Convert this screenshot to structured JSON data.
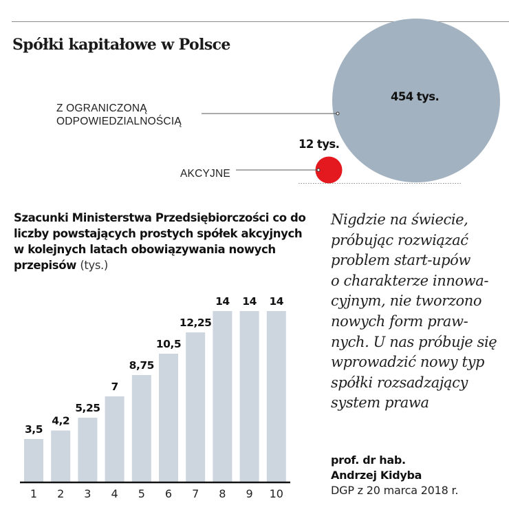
{
  "bubble_section": {
    "title": "Spółki kapitałowe w Polsce",
    "items": [
      {
        "name": "llc",
        "label_lines": [
          "Z OGRANICZONĄ",
          "ODPOWIEDZIALNOŚCIĄ"
        ],
        "value": 454,
        "value_label": "454 tys.",
        "color": "#a2b2c0"
      },
      {
        "name": "sa",
        "label_lines": [
          "AKCYJNE"
        ],
        "value": 12,
        "value_label": "12 tys.",
        "color": "#e3191f"
      }
    ]
  },
  "chart_data": [
    {
      "type": "bubble",
      "title": "Spółki kapitałowe w Polsce",
      "unit": "tys.",
      "categories": [
        "Z ograniczoną odpowiedzialnością",
        "Akcyjne"
      ],
      "values": [
        454,
        12
      ],
      "value_labels": [
        "454 tys.",
        "12 tys."
      ],
      "colors": [
        "#a2b2c0",
        "#e3191f"
      ]
    },
    {
      "type": "bar",
      "title": "Szacunki Ministerstwa Przedsiębiorczości co do liczby powstających prostych spółek akcyjnych w kolejnych latach obowiązywania nowych przepisów",
      "unit": "(tys.)",
      "categories": [
        "1",
        "2",
        "3",
        "4",
        "5",
        "6",
        "7",
        "8",
        "9",
        "10"
      ],
      "values": [
        3.5,
        4.2,
        5.25,
        7,
        8.75,
        10.5,
        12.25,
        14,
        14,
        14
      ],
      "value_labels": [
        "3,5",
        "4,2",
        "5,25",
        "7",
        "8,75",
        "10,5",
        "12,25",
        "14",
        "14",
        "14"
      ],
      "xlabel": "",
      "ylabel": "",
      "ylim": [
        0,
        14
      ],
      "grid": false,
      "bar_color": "#cdd6de"
    }
  ],
  "bar_section": {
    "title_bold": "Szacunki Ministerstwa Przedsiębiorczości co do liczby powstających prostych spółek akcyjnych w kolejnych latach obowiązywania nowych przepisów",
    "title_unit": "(tys.)"
  },
  "quote": {
    "lines": [
      "Nigdzie na świecie,",
      "próbując rozwiązać",
      "problem start-upów",
      "o charakterze innowa-",
      "cyjnym, nie tworzono",
      "nowych form praw-",
      "nych. U nas próbuje się",
      "wprowadzić nowy typ",
      "spółki rozsadzający",
      "system prawa"
    ],
    "author_line1": "prof. dr hab.",
    "author_line2": "Andrzej Kidyba",
    "source": "DGP z 20 marca 2018 r."
  }
}
